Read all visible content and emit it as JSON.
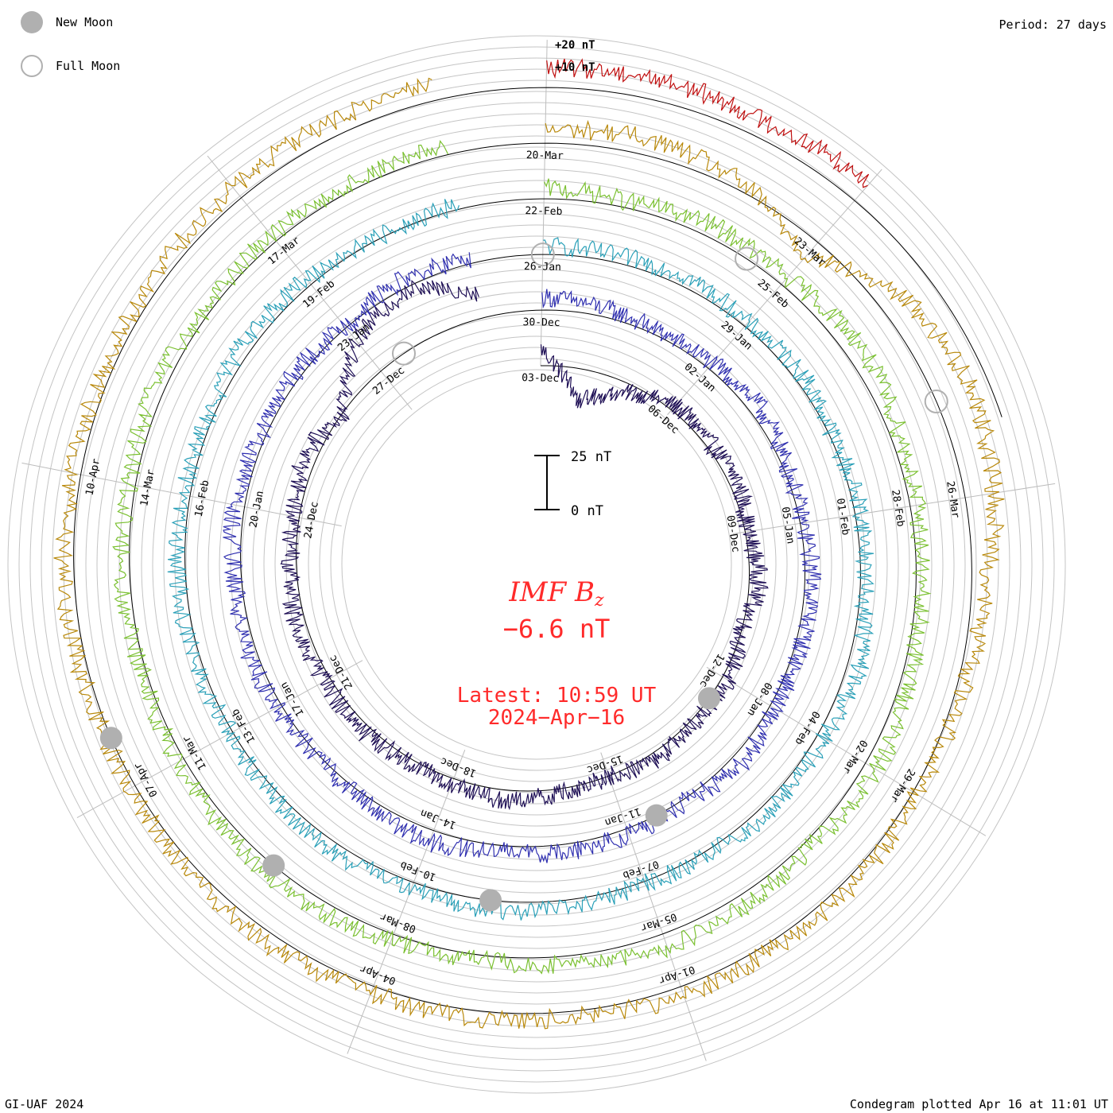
{
  "header": {
    "period_label": "Period: 27 days",
    "credit": "GI-UAF 2024",
    "plotted": "Condegram plotted Apr 16 at 11:01 UT"
  },
  "legend": {
    "new_moon": "New Moon",
    "full_moon": "Full Moon",
    "new_moon_color": "#b0b0b0",
    "full_moon_color": "#b0b0b0"
  },
  "scale_labels": [
    "+20 nT",
    "+10 nT"
  ],
  "scale_bar": {
    "top": "25 nT",
    "bottom": "0 nT"
  },
  "center": {
    "title": "IMF B",
    "subscript": "z",
    "value": "−6.6 nT",
    "latest_time": "Latest: 10:59 UT",
    "latest_date": "2024−Apr−16",
    "color": "#ff2a2a"
  },
  "chart_data": {
    "type": "line",
    "title": "IMF Bz condegram",
    "period_days": 27,
    "units": "nT",
    "scale_nt": [
      0,
      25
    ],
    "latest_value": -6.6,
    "rotations": [
      {
        "color": "#1e0f55",
        "date_labels": [
          "03-Dec",
          "06-Dec",
          "09-Dec",
          "12-Dec",
          "15-Dec",
          "18-Dec",
          "21-Dec",
          "24-Dec",
          "27-Dec"
        ],
        "profile": [
          8,
          -15,
          -4,
          3,
          2,
          4,
          1,
          5,
          0,
          3,
          1,
          4,
          0,
          2,
          5,
          3,
          1,
          4,
          2,
          5,
          3,
          2,
          6,
          0,
          18,
          25,
          12
        ]
      },
      {
        "color": "#3030b0",
        "date_labels": [
          "30-Dec",
          "02-Jan",
          "05-Jan",
          "08-Jan",
          "11-Jan",
          "14-Jan",
          "17-Jan",
          "20-Jan",
          "23-Jan"
        ],
        "profile": [
          6,
          4,
          2,
          3,
          5,
          2,
          1,
          4,
          3,
          2,
          5,
          1,
          3,
          4,
          2,
          6,
          3,
          1,
          2,
          4,
          3,
          5,
          2,
          3,
          1,
          4,
          2
        ]
      },
      {
        "color": "#2aa0b8",
        "date_labels": [
          "26-Jan",
          "29-Jan",
          "01-Feb",
          "04-Feb",
          "07-Feb",
          "10-Feb",
          "13-Feb",
          "16-Feb",
          "19-Feb"
        ],
        "profile": [
          4,
          3,
          5,
          2,
          4,
          1,
          3,
          2,
          6,
          3,
          4,
          2,
          1,
          3,
          5,
          2,
          4,
          3,
          1,
          2,
          4,
          3,
          2,
          5,
          3,
          1,
          2
        ]
      },
      {
        "color": "#7ac030",
        "date_labels": [
          "22-Feb",
          "25-Feb",
          "28-Feb",
          "02-Mar",
          "05-Mar",
          "08-Mar",
          "11-Mar",
          "14-Mar",
          "17-Mar"
        ],
        "profile": [
          5,
          3,
          6,
          4,
          8,
          5,
          3,
          2,
          4,
          6,
          3,
          5,
          7,
          4,
          2,
          3,
          5,
          4,
          3,
          2,
          4,
          3,
          5,
          2,
          4,
          3,
          4
        ]
      },
      {
        "color": "#b8880a",
        "date_labels": [
          "20-Mar",
          "23-Mar",
          "26-Mar",
          "29-Mar",
          "01-Apr",
          "04-Apr",
          "07-Apr",
          "10-Apr"
        ],
        "profile": [
          6,
          8,
          4,
          -8,
          12,
          18,
          14,
          6,
          3,
          2,
          4,
          3,
          5,
          2,
          4,
          3,
          5,
          4,
          2,
          3,
          5,
          4,
          3,
          5,
          6,
          7,
          8
        ]
      },
      {
        "color": "#c01010",
        "date_labels": [],
        "profile": [
          9,
          10,
          8,
          11
        ]
      }
    ],
    "new_moon_days_since_start": [
      9.5,
      38.5,
      68,
      97.5,
      126.5
    ],
    "full_moon_days_since_start": [
      24.5,
      54,
      83.5,
      113
    ]
  }
}
